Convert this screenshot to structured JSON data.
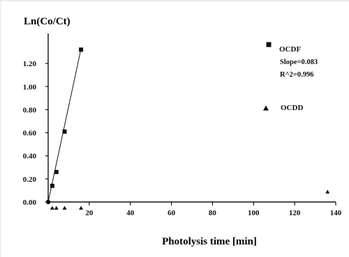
{
  "chart_data": {
    "type": "scatter",
    "title": "Ln(Co/Ct)",
    "xlabel": "Photolysis time [min]",
    "ylabel": "",
    "xlim": [
      0,
      140
    ],
    "ylim": [
      0,
      1.4
    ],
    "x_ticks": [
      "20",
      "40",
      "60",
      "80",
      "100",
      "120",
      "140"
    ],
    "y_ticks": [
      "0.00",
      "0.20",
      "0.40",
      "0.60",
      "0.80",
      "1.00",
      "1.20"
    ],
    "series": [
      {
        "name": "OCDF",
        "marker": "square",
        "color": "#111111",
        "points": [
          {
            "x": 0,
            "y": 0.0
          },
          {
            "x": 2,
            "y": 0.14
          },
          {
            "x": 4,
            "y": 0.26
          },
          {
            "x": 8,
            "y": 0.61
          },
          {
            "x": 16,
            "y": 1.32
          }
        ],
        "fit": {
          "slope_label": "Slope=0.083",
          "r2_label": "R^2=0.996",
          "slope": 0.083
        }
      },
      {
        "name": "OCDD",
        "marker": "triangle",
        "color": "#111111",
        "points": [
          {
            "x": 2,
            "y": -0.05
          },
          {
            "x": 4,
            "y": -0.05
          },
          {
            "x": 8,
            "y": -0.05
          },
          {
            "x": 16,
            "y": -0.05
          },
          {
            "x": 136,
            "y": 0.09
          }
        ]
      }
    ],
    "legend_position": "top-right"
  }
}
